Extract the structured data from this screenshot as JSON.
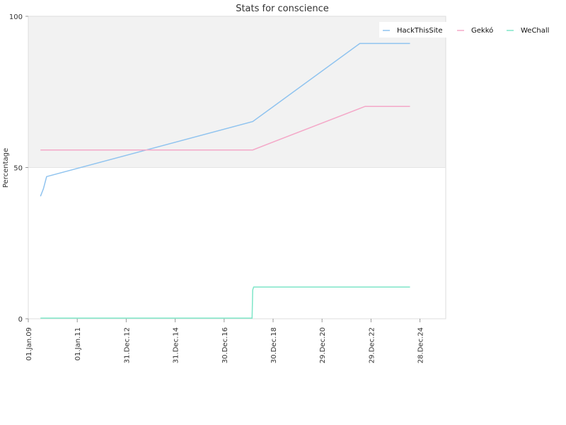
{
  "chart_data": {
    "type": "line",
    "title": "Stats for conscience",
    "ylabel": "Percentage",
    "xlabel": "",
    "ylim": [
      0,
      100
    ],
    "y_ticks": [
      "0",
      "50",
      "100"
    ],
    "x_ticks": [
      "01.Jan.09",
      "01.Jan.11",
      "31.Dec.12",
      "31.Dec.14",
      "30.Dec.16",
      "30.Dec.18",
      "29.Dec.20",
      "29.Dec.22",
      "28.Dec.24"
    ],
    "shaded_band": [
      50,
      100
    ],
    "legend_position": "top-right",
    "series": [
      {
        "name": "HackThisSite",
        "color": "#8fc3ef",
        "points": [
          [
            "2009-07-01",
            40.5
          ],
          [
            "2009-08-15",
            43.0
          ],
          [
            "2009-10-01",
            47.0
          ],
          [
            "2018-03-01",
            65.2
          ],
          [
            "2022-07-15",
            91.0
          ],
          [
            "2024-08-01",
            91.0
          ]
        ]
      },
      {
        "name": "Gekkó",
        "color": "#f4a8c8",
        "points": [
          [
            "2009-07-01",
            55.8
          ],
          [
            "2018-03-01",
            55.8
          ],
          [
            "2022-10-01",
            70.2
          ],
          [
            "2024-08-01",
            70.2
          ]
        ]
      },
      {
        "name": "WeChall",
        "color": "#7fe6c8",
        "points": [
          [
            "2009-07-01",
            0.2
          ],
          [
            "2018-02-20",
            0.2
          ],
          [
            "2018-03-01",
            9.5
          ],
          [
            "2018-03-15",
            10.5
          ],
          [
            "2024-08-01",
            10.5
          ]
        ]
      }
    ]
  }
}
